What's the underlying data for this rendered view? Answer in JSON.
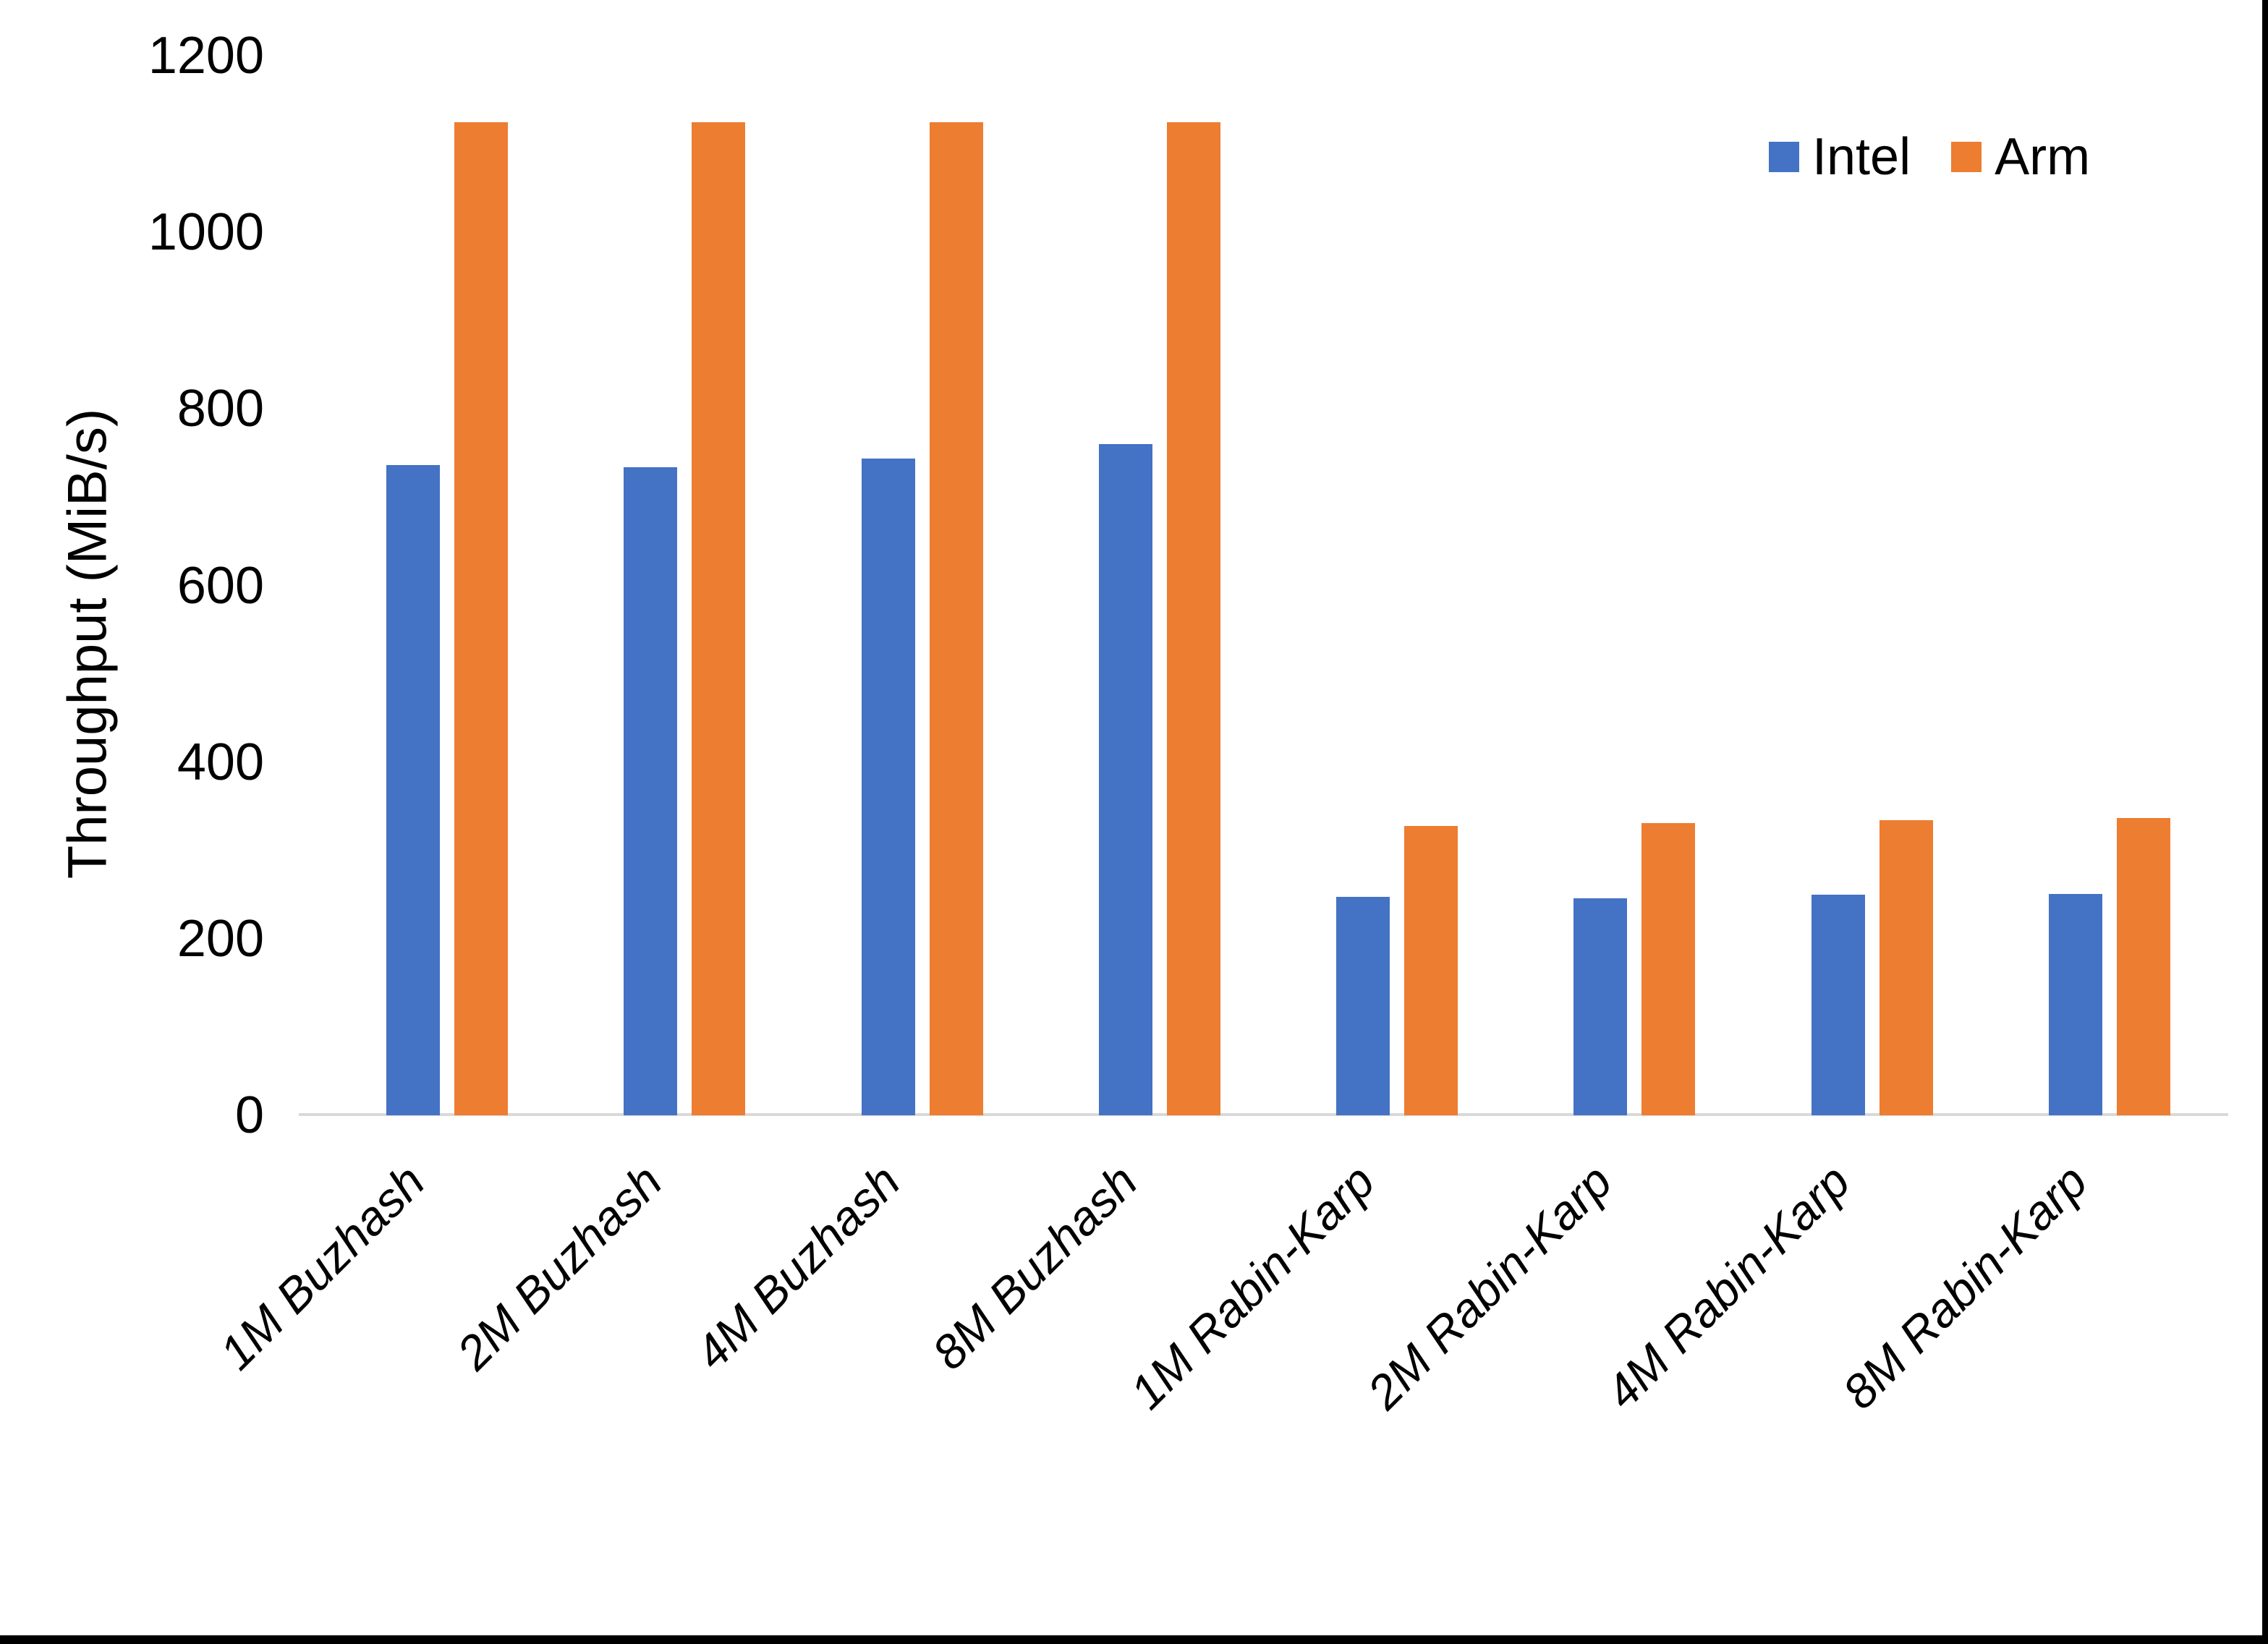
{
  "chart_data": {
    "type": "bar",
    "title": "",
    "xlabel": "",
    "ylabel": "Throughput (MiB/s)",
    "ylim": [
      0,
      1200
    ],
    "yticks": [
      0,
      200,
      400,
      600,
      800,
      1000,
      1200
    ],
    "grid": false,
    "legend_position": "top-right",
    "categories": [
      "1M Buzhash",
      "2M Buzhash",
      "4M Buzhash",
      "8M Buzhash",
      "1M Rabin-Karp",
      "2M Rabin-Karp",
      "4M Rabin-Karp",
      "8M Rabin-Karp"
    ],
    "series": [
      {
        "name": "Intel",
        "color": "#4472C4",
        "values": [
          736,
          734,
          744,
          760,
          247,
          246,
          250,
          251
        ]
      },
      {
        "name": "Arm",
        "color": "#ED7D31",
        "values": [
          1125,
          1125,
          1125,
          1125,
          328,
          331,
          334,
          337
        ]
      }
    ],
    "axis_line_color": "#D9D9D9",
    "frame_color": "#000000"
  }
}
